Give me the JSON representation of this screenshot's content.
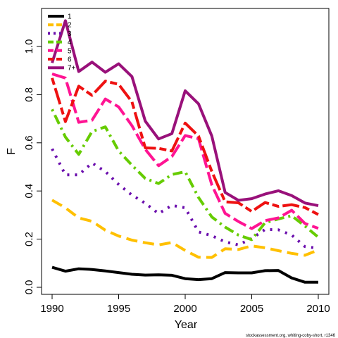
{
  "chart_data": {
    "type": "line",
    "title": "",
    "xlabel": "Year",
    "ylabel": "F",
    "xlim": [
      1990,
      2010
    ],
    "ylim": [
      0,
      1.1
    ],
    "xticks": [
      1990,
      1995,
      2000,
      2005,
      2010
    ],
    "yticks": [
      0.0,
      0.2,
      0.4,
      0.6,
      0.8,
      1.0
    ],
    "ytick_labels": [
      "0.0",
      "0.2",
      "0.4",
      "0.6",
      "0.8",
      "1.0"
    ],
    "legend_position": "top-left",
    "source": "stockassessment.org, whiting-coby-short, r1346",
    "x": [
      1990,
      1991,
      1992,
      1993,
      1994,
      1995,
      1996,
      1997,
      1998,
      1999,
      2000,
      2001,
      2002,
      2003,
      2004,
      2005,
      2006,
      2007,
      2008,
      2009,
      2010
    ],
    "series": [
      {
        "name": "1",
        "color": "#000000",
        "dash": "solid",
        "values": [
          0.083,
          0.067,
          0.077,
          0.074,
          0.068,
          0.061,
          0.054,
          0.051,
          0.052,
          0.05,
          0.036,
          0.032,
          0.036,
          0.061,
          0.06,
          0.06,
          0.069,
          0.07,
          0.039,
          0.021,
          0.021
        ]
      },
      {
        "name": "2",
        "color": "#FFC000",
        "dash": "long",
        "values": [
          0.362,
          0.33,
          0.288,
          0.274,
          0.237,
          0.213,
          0.196,
          0.185,
          0.176,
          0.186,
          0.153,
          0.125,
          0.124,
          0.16,
          0.157,
          0.172,
          0.164,
          0.152,
          0.141,
          0.133,
          0.155
        ]
      },
      {
        "name": "3",
        "color": "#6A0DAD",
        "dash": "dot",
        "values": [
          0.575,
          0.467,
          0.467,
          0.516,
          0.481,
          0.427,
          0.383,
          0.349,
          0.306,
          0.34,
          0.33,
          0.23,
          0.214,
          0.189,
          0.176,
          0.203,
          0.24,
          0.239,
          0.217,
          0.169,
          0.162
        ]
      },
      {
        "name": "4",
        "color": "#66CC00",
        "dash": "dashdot",
        "values": [
          0.739,
          0.624,
          0.552,
          0.647,
          0.666,
          0.566,
          0.507,
          0.452,
          0.431,
          0.468,
          0.48,
          0.373,
          0.292,
          0.25,
          0.217,
          0.198,
          0.268,
          0.284,
          0.297,
          0.254,
          0.208
        ]
      },
      {
        "name": "5",
        "color": "#FF1493",
        "dash": "longdash",
        "values": [
          0.886,
          0.869,
          0.685,
          0.694,
          0.782,
          0.749,
          0.671,
          0.573,
          0.505,
          0.543,
          0.63,
          0.617,
          0.425,
          0.307,
          0.273,
          0.244,
          0.277,
          0.288,
          0.32,
          0.265,
          0.245
        ]
      },
      {
        "name": "6",
        "color": "#EE1111",
        "dash": "twodash",
        "values": [
          0.869,
          0.688,
          0.835,
          0.797,
          0.856,
          0.843,
          0.77,
          0.579,
          0.577,
          0.566,
          0.682,
          0.628,
          0.481,
          0.355,
          0.351,
          0.315,
          0.352,
          0.336,
          0.343,
          0.331,
          0.302
        ]
      },
      {
        "name": "7+",
        "color": "#99117A",
        "dash": "solid",
        "values": [
          0.932,
          1.107,
          0.896,
          0.935,
          0.893,
          0.928,
          0.875,
          0.69,
          0.616,
          0.638,
          0.816,
          0.762,
          0.628,
          0.394,
          0.361,
          0.368,
          0.387,
          0.401,
          0.381,
          0.35,
          0.339
        ]
      }
    ]
  }
}
